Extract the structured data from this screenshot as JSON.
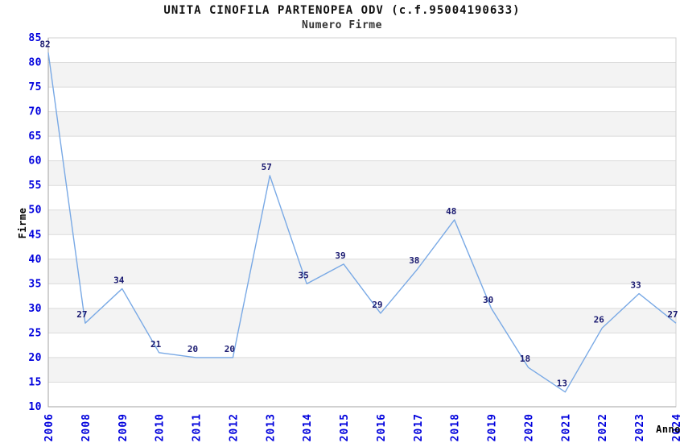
{
  "header": {
    "title": "UNITA CINOFILA PARTENOPEA ODV (c.f.95004190633)",
    "subtitle": "Numero Firme"
  },
  "axes": {
    "y_title": "Firme",
    "x_title": "Anno"
  },
  "colors": {
    "title": "#111111",
    "subtitle": "#333333",
    "tick_label": "#0000DD",
    "point_label": "#191970",
    "line": "#79A9E5",
    "band": "#F3F3F3",
    "grid": "#DBDBDB",
    "border": "#D2D2D2",
    "axis": "#A3A3A3",
    "background": "#FFFFFF"
  },
  "chart_data": {
    "type": "line",
    "title": "UNITA CINOFILA PARTENOPEA ODV (c.f.95004190633)",
    "subtitle": "Numero Firme",
    "xlabel": "Anno",
    "ylabel": "Firme",
    "categories": [
      "2006",
      "2008",
      "2009",
      "2010",
      "2011",
      "2012",
      "2013",
      "2014",
      "2015",
      "2016",
      "2017",
      "2018",
      "2019",
      "2020",
      "2021",
      "2022",
      "2023",
      "2024"
    ],
    "values": [
      82,
      27,
      34,
      21,
      20,
      20,
      57,
      35,
      39,
      29,
      38,
      48,
      30,
      18,
      13,
      26,
      33,
      27
    ],
    "ylim": [
      10,
      85
    ],
    "ytick_step": 5,
    "ytick_labels": [
      "10",
      "15",
      "20",
      "25",
      "30",
      "35",
      "40",
      "45",
      "50",
      "55",
      "60",
      "65",
      "70",
      "75",
      "80",
      "85"
    ],
    "grid": true,
    "banded_background": true,
    "data_labels": true,
    "legend_position": "none",
    "x_tick_rotation": -90
  }
}
